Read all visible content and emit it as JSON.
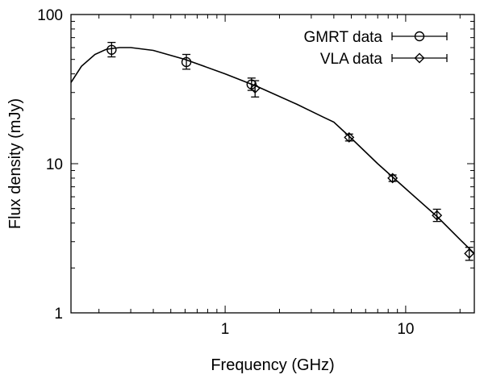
{
  "chart_data": {
    "type": "scatter",
    "title": "",
    "xlabel": "Frequency (GHz)",
    "ylabel": "Flux density (mJy)",
    "xscale": "log",
    "yscale": "log",
    "xlim": [
      0.14,
      24
    ],
    "ylim": [
      1,
      100
    ],
    "x_ticks": [
      {
        "value": 1,
        "label": "1"
      },
      {
        "value": 10,
        "label": "10"
      }
    ],
    "y_ticks": [
      {
        "value": 1,
        "label": "1"
      },
      {
        "value": 10,
        "label": "10"
      },
      {
        "value": 100,
        "label": "100"
      }
    ],
    "grid": false,
    "legend": "top-right",
    "series": [
      {
        "name": "GMRT data",
        "marker": "circle",
        "points": [
          {
            "x": 0.235,
            "y": 58,
            "err_lo": 6,
            "err_hi": 7
          },
          {
            "x": 0.61,
            "y": 48,
            "err_lo": 5,
            "err_hi": 6
          },
          {
            "x": 1.4,
            "y": 34,
            "err_lo": 3,
            "err_hi": 3.5
          }
        ]
      },
      {
        "name": "VLA data",
        "marker": "diamond",
        "points": [
          {
            "x": 1.465,
            "y": 32,
            "err_lo": 4,
            "err_hi": 4
          },
          {
            "x": 4.86,
            "y": 15,
            "err_lo": 0.8,
            "err_hi": 0.8
          },
          {
            "x": 8.46,
            "y": 8,
            "err_lo": 0.4,
            "err_hi": 0.4
          },
          {
            "x": 14.9,
            "y": 4.5,
            "err_lo": 0.4,
            "err_hi": 0.45
          },
          {
            "x": 22.5,
            "y": 2.5,
            "err_lo": 0.25,
            "err_hi": 0.25
          }
        ]
      }
    ],
    "model_curve": {
      "points": [
        {
          "x": 0.14,
          "y": 35
        },
        {
          "x": 0.16,
          "y": 45
        },
        {
          "x": 0.19,
          "y": 54
        },
        {
          "x": 0.22,
          "y": 58.5
        },
        {
          "x": 0.26,
          "y": 60
        },
        {
          "x": 0.3,
          "y": 60
        },
        {
          "x": 0.4,
          "y": 57.5
        },
        {
          "x": 0.6,
          "y": 50
        },
        {
          "x": 1.0,
          "y": 40
        },
        {
          "x": 1.5,
          "y": 33
        },
        {
          "x": 2.5,
          "y": 25
        },
        {
          "x": 3.5,
          "y": 20.5
        },
        {
          "x": 4.0,
          "y": 19
        },
        {
          "x": 5.0,
          "y": 14.8
        },
        {
          "x": 7.0,
          "y": 10
        },
        {
          "x": 10.0,
          "y": 6.8
        },
        {
          "x": 15.0,
          "y": 4.4
        },
        {
          "x": 20.0,
          "y": 3.1
        },
        {
          "x": 24.0,
          "y": 2.5
        }
      ]
    }
  }
}
